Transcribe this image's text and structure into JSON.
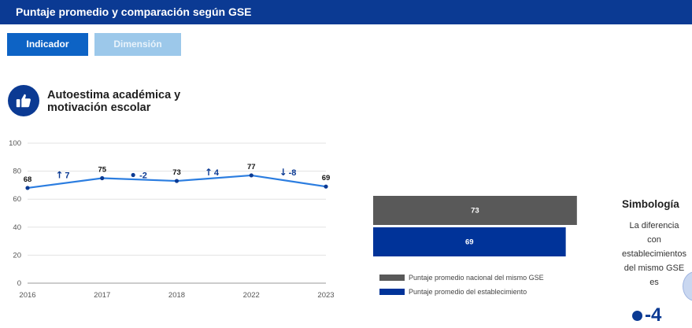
{
  "header": {
    "title": "Puntaje promedio y comparación según GSE"
  },
  "tabs": [
    {
      "label": "Indicador",
      "active": true
    },
    {
      "label": "Dimensión",
      "active": false
    }
  ],
  "section": {
    "icon": "thumbs-up-icon",
    "title_line1": "Autoestima académica y",
    "title_line2": "motivación escolar"
  },
  "colors": {
    "accent": "#0b3a93",
    "tab_active": "#0d63c5",
    "tab_inactive": "#9cc8ea",
    "national": "#595959",
    "school": "#003399"
  },
  "chart_data": [
    {
      "type": "line",
      "x": [
        "2016",
        "2017",
        "2018",
        "2022",
        "2023"
      ],
      "values": [
        68,
        75,
        73,
        77,
        69
      ],
      "ylim": [
        0,
        100
      ],
      "yticks": [
        "0",
        "20",
        "40",
        "60",
        "80",
        "100"
      ],
      "grid": true,
      "changes": [
        {
          "symbol": "↑",
          "value": "7"
        },
        {
          "symbol": "•",
          "value": "-2"
        },
        {
          "symbol": "↑",
          "value": "4"
        },
        {
          "symbol": "↓",
          "value": "-8"
        }
      ]
    },
    {
      "type": "bar",
      "orientation": "horizontal",
      "series": [
        {
          "name": "Puntaje promedio nacional del mismo GSE",
          "values": [
            73
          ],
          "color": "#595959"
        },
        {
          "name": "Puntaje promedio del establecimiento",
          "values": [
            69
          ],
          "color": "#003399"
        }
      ],
      "xlim": [
        0,
        77
      ]
    }
  ],
  "simbologia": {
    "title": "Simbología",
    "line1": "La diferencia",
    "line2": "con",
    "line3": "establecimientos",
    "line4": "del mismo GSE",
    "line5": "es",
    "value": "-4"
  }
}
